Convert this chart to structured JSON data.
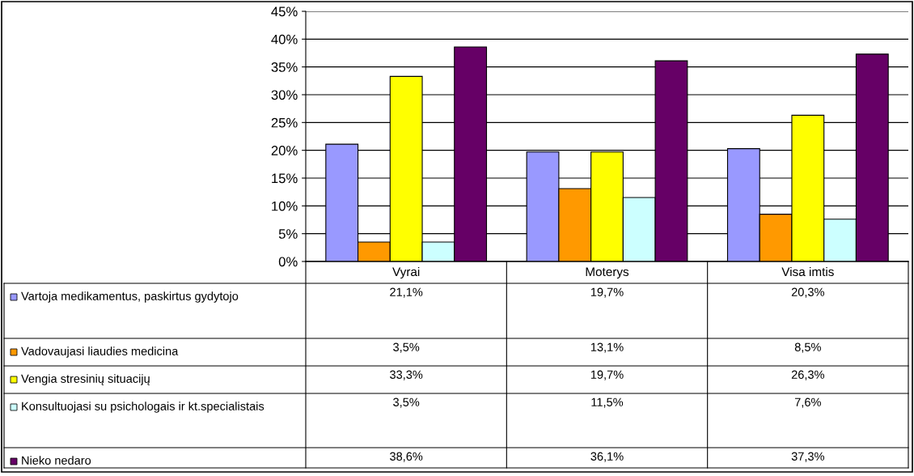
{
  "chart_data": {
    "type": "bar",
    "categories": [
      "Vyrai",
      "Moterys",
      "Visa imtis"
    ],
    "ylim": [
      0,
      45
    ],
    "yticks": [
      {
        "value": 0,
        "label": "0%"
      },
      {
        "value": 5,
        "label": "5%"
      },
      {
        "value": 10,
        "label": "10%"
      },
      {
        "value": 15,
        "label": "15%"
      },
      {
        "value": 20,
        "label": "20%"
      },
      {
        "value": 25,
        "label": "25%"
      },
      {
        "value": 30,
        "label": "30%"
      },
      {
        "value": 35,
        "label": "35%"
      },
      {
        "value": 40,
        "label": "40%"
      },
      {
        "value": 45,
        "label": "45%"
      }
    ],
    "grid": "y",
    "legend": "bottom",
    "series": [
      {
        "name": "Vartoja medikamentus, paskirtus gydytojo",
        "color": "#9999ff",
        "values": [
          21.1,
          19.7,
          20.3
        ],
        "value_labels": [
          "21,1%",
          "19,7%",
          "20,3%"
        ]
      },
      {
        "name": "Vadovaujasi liaudies medicina",
        "color": "#ff9900",
        "values": [
          3.5,
          13.1,
          8.5
        ],
        "value_labels": [
          "3,5%",
          "13,1%",
          "8,5%"
        ]
      },
      {
        "name": "Vengia stresinių situacijų",
        "color": "#ffff00",
        "values": [
          33.3,
          19.7,
          26.3
        ],
        "value_labels": [
          "33,3%",
          "19,7%",
          "26,3%"
        ]
      },
      {
        "name": "Konsultuojasi su psichologais ir kt.specialistais",
        "color": "#ccffff",
        "values": [
          3.5,
          11.5,
          7.6
        ],
        "value_labels": [
          "3,5%",
          "11,5%",
          "7,6%"
        ]
      },
      {
        "name": "Nieko nedaro",
        "color": "#660066",
        "values": [
          38.6,
          36.1,
          37.3
        ],
        "value_labels": [
          "38,6%",
          "36,1%",
          "37,3%"
        ]
      }
    ]
  }
}
